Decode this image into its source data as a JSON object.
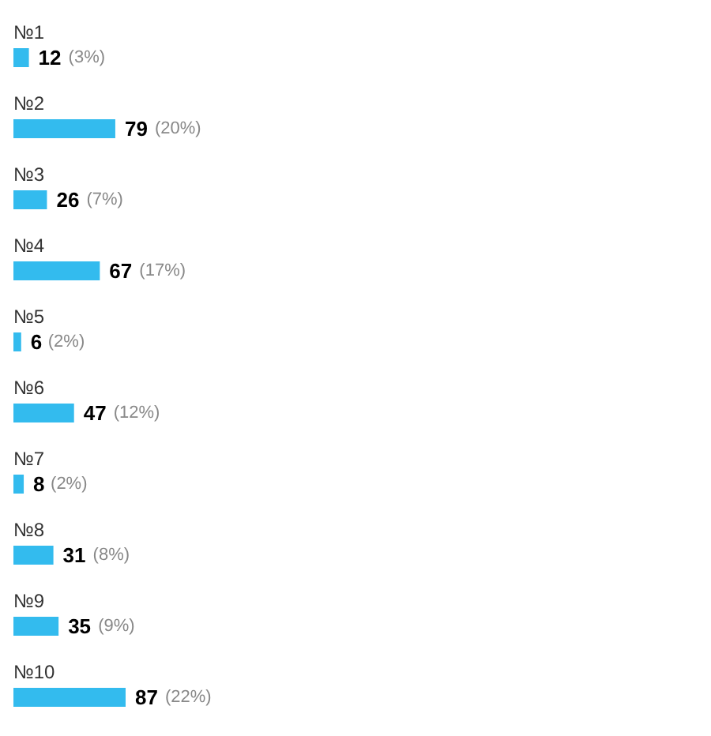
{
  "chart_data": {
    "type": "bar",
    "orientation": "horizontal",
    "categories": [
      "№1",
      "№2",
      "№3",
      "№4",
      "№5",
      "№6",
      "№7",
      "№8",
      "№9",
      "№10"
    ],
    "values": [
      12,
      79,
      26,
      67,
      6,
      47,
      8,
      31,
      35,
      87
    ],
    "data_labels": true,
    "color": "#33bbee",
    "annotations": [
      {
        "text": "(3%)",
        "x": 12,
        "y": "№1"
      },
      {
        "text": "(20%)",
        "x": 79,
        "y": "№2"
      },
      {
        "text": "(7%)",
        "x": 26,
        "y": "№3"
      },
      {
        "text": "(17%)",
        "x": 67,
        "y": "№4"
      },
      {
        "text": "(2%)",
        "x": 6,
        "y": "№5"
      },
      {
        "text": "(12%)",
        "x": 47,
        "y": "№6"
      },
      {
        "text": "(2%)",
        "x": 8,
        "y": "№7"
      },
      {
        "text": "(8%)",
        "x": 31,
        "y": "№8"
      },
      {
        "text": "(9%)",
        "x": 35,
        "y": "№9"
      },
      {
        "text": "(22%)",
        "x": 87,
        "y": "№10"
      }
    ]
  }
}
